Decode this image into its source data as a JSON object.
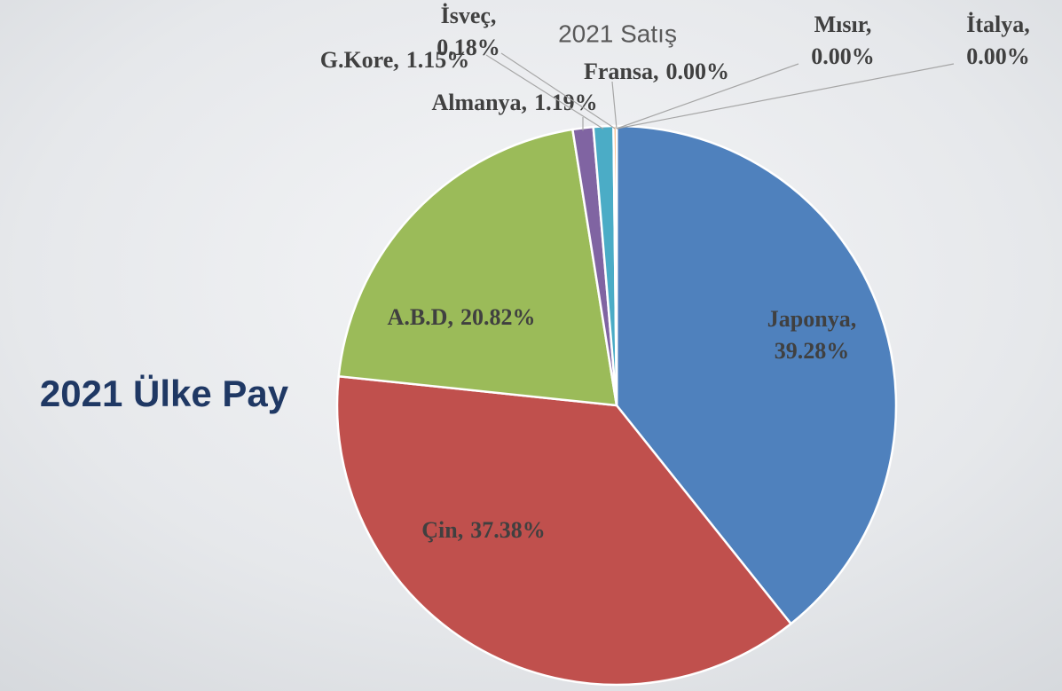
{
  "slide_title": "2021 Ülke Pay",
  "chart_data": {
    "type": "pie",
    "title": "2021 Satış",
    "categories": [
      "Japonya,",
      "Çin,",
      "A.B.D,",
      "Almanya,",
      "G.Kore,",
      "İsveç,",
      "Fransa,",
      "Mısır,",
      "İtalya,"
    ],
    "values": [
      39.28,
      37.38,
      20.82,
      1.19,
      1.15,
      0.18,
      0.0,
      0.0,
      0.0
    ],
    "value_labels": [
      "39.28%",
      "37.38%",
      "20.82%",
      "1.19%",
      "1.15%",
      "0.18%",
      "0.00%",
      "0.00%",
      "0.00%"
    ],
    "colors": [
      "#4f81bd",
      "#c0504d",
      "#9bbb59",
      "#8064a2",
      "#4bacc6",
      "#f79646",
      "#2c4d75",
      "#772c2a",
      "#5f7530"
    ]
  }
}
